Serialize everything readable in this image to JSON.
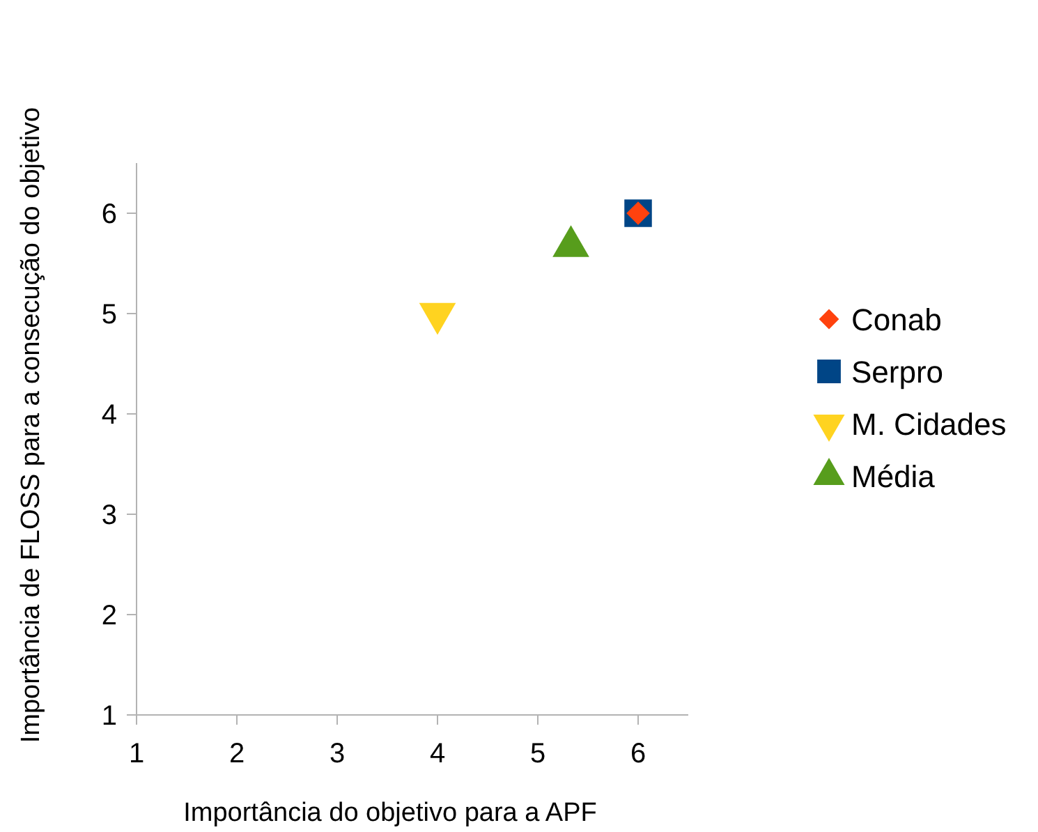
{
  "chart_data": {
    "type": "scatter",
    "xlabel": "Importância do objetivo para a APF",
    "ylabel": "Importância de FLOSS para a consecução do objetivo",
    "xlim": [
      1,
      6.5
    ],
    "ylim": [
      1,
      6.5
    ],
    "xticks": [
      1,
      2,
      3,
      4,
      5,
      6
    ],
    "yticks": [
      1,
      2,
      3,
      4,
      5,
      6
    ],
    "grid": false,
    "legend": "right",
    "series": [
      {
        "name": "Conab",
        "color": "#ff420e",
        "marker": "diamond",
        "x": [
          6
        ],
        "values": [
          6
        ]
      },
      {
        "name": "Serpro",
        "color": "#004586",
        "marker": "square",
        "x": [
          6
        ],
        "values": [
          6
        ]
      },
      {
        "name": "M. Cidades",
        "color": "#ffd320",
        "marker": "triangle-down",
        "x": [
          4
        ],
        "values": [
          5
        ]
      },
      {
        "name": "Média",
        "color": "#579d1c",
        "marker": "triangle",
        "x": [
          5.33
        ],
        "values": [
          5.67
        ]
      }
    ]
  }
}
